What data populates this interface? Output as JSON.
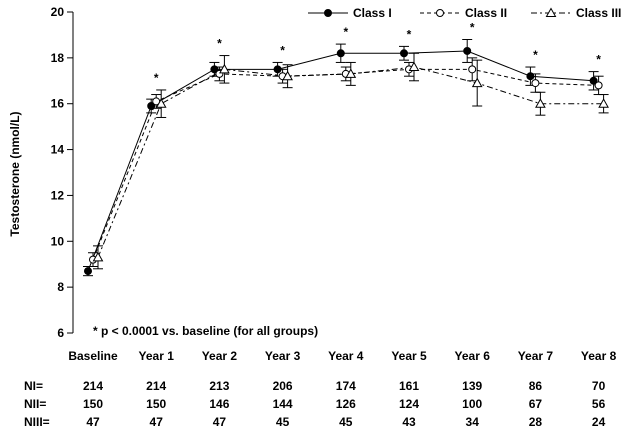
{
  "chart_data": {
    "type": "line",
    "categories": [
      "Baseline",
      "Year 1",
      "Year 2",
      "Year 3",
      "Year 4",
      "Year 5",
      "Year 6",
      "Year 7",
      "Year 8"
    ],
    "ylabel": "Testosterone (nmol/L)",
    "xlabel": "",
    "ylim": [
      6,
      20
    ],
    "yticks": [
      6,
      8,
      10,
      12,
      14,
      16,
      18,
      20
    ],
    "grid": false,
    "legend_position": "top-right",
    "series": [
      {
        "name": "Class I",
        "line": "solid",
        "marker": "filled-circle",
        "values": [
          8.7,
          15.9,
          17.5,
          17.5,
          18.2,
          18.2,
          18.3,
          17.2,
          17.0
        ],
        "err_low": [
          8.5,
          15.6,
          17.2,
          17.2,
          17.8,
          17.9,
          17.8,
          16.8,
          16.6
        ],
        "err_high": [
          8.9,
          16.2,
          17.8,
          17.8,
          18.6,
          18.5,
          18.8,
          17.6,
          17.4
        ]
      },
      {
        "name": "Class II",
        "line": "dashed",
        "marker": "open-circle",
        "values": [
          9.2,
          16.1,
          17.3,
          17.2,
          17.3,
          17.5,
          17.5,
          16.9,
          16.8
        ],
        "err_low": [
          8.9,
          15.8,
          17.0,
          16.9,
          17.0,
          17.2,
          17.0,
          16.5,
          16.4
        ],
        "err_high": [
          9.5,
          16.4,
          17.6,
          17.5,
          17.6,
          17.8,
          18.0,
          17.3,
          17.2
        ]
      },
      {
        "name": "Class III",
        "line": "dash-dot",
        "marker": "open-triangle",
        "values": [
          9.3,
          16.0,
          17.5,
          17.2,
          17.3,
          17.6,
          16.9,
          16.0,
          16.0
        ],
        "err_low": [
          8.8,
          15.4,
          16.9,
          16.7,
          16.8,
          17.0,
          15.9,
          15.5,
          15.6
        ],
        "err_high": [
          9.8,
          16.6,
          18.1,
          17.7,
          17.8,
          18.2,
          17.9,
          16.5,
          16.4
        ]
      }
    ],
    "significance_marks": [
      "",
      "*",
      "*",
      "*",
      "*",
      "*",
      "*",
      "*",
      "*"
    ],
    "annotation": "* p < 0.0001 vs. baseline (for all groups)",
    "counts": [
      {
        "label": "NI=",
        "values": [
          "214",
          "214",
          "213",
          "206",
          "174",
          "161",
          "139",
          "86",
          "70"
        ]
      },
      {
        "label": "NII=",
        "values": [
          "150",
          "150",
          "146",
          "144",
          "126",
          "124",
          "100",
          "67",
          "56"
        ]
      },
      {
        "label": "NIII=",
        "values": [
          "47",
          "47",
          "47",
          "45",
          "45",
          "43",
          "34",
          "28",
          "24"
        ]
      }
    ]
  }
}
